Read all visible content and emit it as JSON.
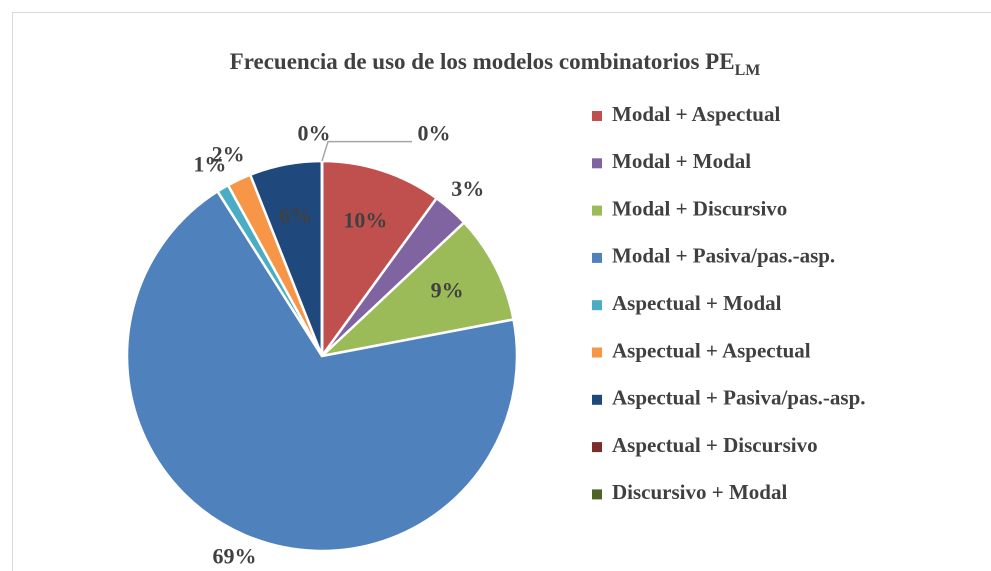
{
  "chart_data": {
    "type": "pie",
    "title": "Frecuencia de uso de los modelos combinatorios PE",
    "title_subscript": "LM",
    "categories": [
      "Modal + Aspectual",
      "Modal + Modal",
      "Modal + Discursivo",
      "Modal + Pasiva/pas.-asp.",
      "Aspectual + Modal",
      "Aspectual + Aspectual",
      "Aspectual + Pasiva/pas.-asp.",
      "Aspectual + Discursivo",
      "Discursivo + Modal"
    ],
    "values": [
      10,
      3,
      9,
      69,
      1,
      2,
      6,
      0,
      0
    ],
    "value_labels": [
      "10%",
      "3%",
      "9%",
      "69%",
      "1%",
      "2%",
      "6%",
      "0%",
      "0%"
    ],
    "colors": [
      "#c0504d",
      "#8064a2",
      "#9bbb59",
      "#4f81bd",
      "#4bacc6",
      "#f79646",
      "#1f497d",
      "#7b2c2c",
      "#4f6228"
    ],
    "legend": "right"
  }
}
